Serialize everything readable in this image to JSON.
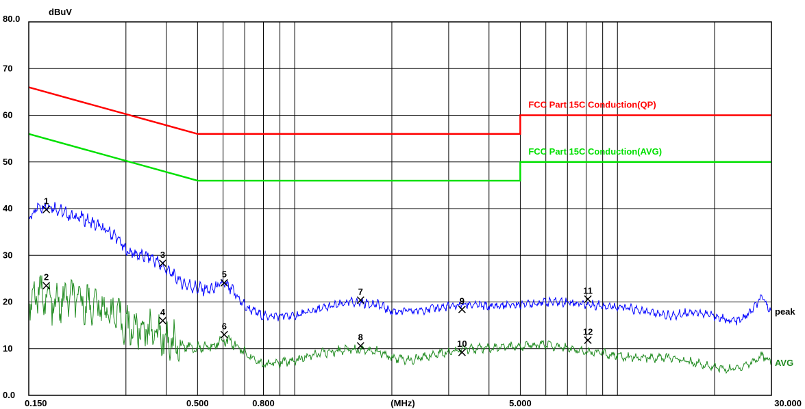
{
  "chart_data": {
    "type": "line",
    "x_scale": "log",
    "x_range_mhz": [
      0.15,
      30
    ],
    "ylim": [
      0,
      80
    ],
    "yunit": "dBuV",
    "xunit": "(MHz)",
    "y_ticks": [
      {
        "value": 80,
        "label": "80.0"
      },
      {
        "value": 70,
        "label": "70"
      },
      {
        "value": 60,
        "label": "60"
      },
      {
        "value": 50,
        "label": "50"
      },
      {
        "value": 40,
        "label": "40"
      },
      {
        "value": 30,
        "label": "30"
      },
      {
        "value": 20,
        "label": "20"
      },
      {
        "value": 10,
        "label": "10"
      },
      {
        "value": 0,
        "label": "0.0"
      }
    ],
    "x_ticks": [
      {
        "value": 0.15,
        "label": "0.150"
      },
      {
        "value": 0.5,
        "label": "0.500"
      },
      {
        "value": 0.8,
        "label": "0.800"
      },
      {
        "value": 5,
        "label": "5.000"
      },
      {
        "value": 30,
        "label": "30.000"
      }
    ],
    "x_gridlines": [
      0.3,
      0.4,
      0.5,
      0.6,
      0.7,
      0.8,
      0.9,
      1,
      2,
      3,
      4,
      5,
      6,
      7,
      8,
      9,
      10,
      20
    ],
    "grid": true,
    "limits": [
      {
        "name": "FCC Part 15C  Conduction(QP)",
        "color": "#ff0000",
        "x": [
          0.15,
          0.5,
          5,
          5,
          30
        ],
        "y": [
          66,
          56,
          56,
          60,
          60
        ]
      },
      {
        "name": "FCC Part 15C  Conduction(AVG)",
        "color": "#00e000",
        "x": [
          0.15,
          0.5,
          5,
          5,
          30
        ],
        "y": [
          56,
          46,
          46,
          50,
          50
        ]
      }
    ],
    "series": [
      {
        "name": "peak",
        "color": "#0000ff",
        "x": [
          0.15,
          0.16,
          0.17,
          0.18,
          0.2,
          0.22,
          0.25,
          0.28,
          0.3,
          0.33,
          0.36,
          0.4,
          0.45,
          0.5,
          0.55,
          0.6,
          0.65,
          0.7,
          0.8,
          0.9,
          1.0,
          1.2,
          1.5,
          1.8,
          2.0,
          2.3,
          2.6,
          3.0,
          3.5,
          4.0,
          5.0,
          6.0,
          7.0,
          8.0,
          10,
          12,
          15,
          17,
          20,
          22,
          24,
          26,
          28,
          30
        ],
        "y": [
          38,
          40.5,
          40.7,
          40.3,
          38.5,
          38,
          36,
          34,
          31,
          30,
          29.5,
          27,
          24,
          23,
          22.5,
          24,
          22,
          19,
          17,
          17,
          17,
          18.5,
          20,
          19.5,
          18,
          18,
          18.5,
          19,
          19.5,
          19,
          19.5,
          20,
          20,
          19.5,
          19,
          18,
          17,
          18,
          17,
          16,
          16,
          18,
          21,
          18
        ]
      },
      {
        "name": "AVG",
        "color": "#1e8a1e",
        "x": [
          0.15,
          0.16,
          0.17,
          0.18,
          0.2,
          0.22,
          0.25,
          0.28,
          0.3,
          0.33,
          0.36,
          0.4,
          0.45,
          0.5,
          0.55,
          0.6,
          0.65,
          0.7,
          0.8,
          0.9,
          1.0,
          1.2,
          1.5,
          1.8,
          2.0,
          2.3,
          2.6,
          3.0,
          3.5,
          4.0,
          5.0,
          6.0,
          7.0,
          8.0,
          10,
          12,
          15,
          17,
          20,
          22,
          24,
          26,
          28,
          30
        ],
        "y": [
          20,
          22,
          21,
          19,
          21,
          20,
          19,
          17,
          15,
          14,
          14,
          12,
          10.5,
          10,
          10.5,
          12,
          11,
          9,
          6.5,
          7,
          7.5,
          9,
          10,
          9.5,
          8,
          7.5,
          8.5,
          9.5,
          10,
          10,
          10.5,
          11,
          10,
          9.5,
          8.5,
          8,
          8,
          7,
          6,
          5.5,
          6,
          7,
          8.5,
          7
        ]
      }
    ],
    "markers": [
      {
        "label": "1",
        "x": 0.17,
        "y": 39.8
      },
      {
        "label": "2",
        "x": 0.17,
        "y": 23.5
      },
      {
        "label": "3",
        "x": 0.39,
        "y": 28.3
      },
      {
        "label": "4",
        "x": 0.39,
        "y": 16
      },
      {
        "label": "5",
        "x": 0.605,
        "y": 24.1
      },
      {
        "label": "6",
        "x": 0.605,
        "y": 13
      },
      {
        "label": "7",
        "x": 1.6,
        "y": 20.4
      },
      {
        "label": "8",
        "x": 1.6,
        "y": 10.6
      },
      {
        "label": "9",
        "x": 3.3,
        "y": 18.4
      },
      {
        "label": "10",
        "x": 3.3,
        "y": 9.2
      },
      {
        "label": "11",
        "x": 8.1,
        "y": 20.6
      },
      {
        "label": "12",
        "x": 8.1,
        "y": 11.8
      }
    ]
  }
}
